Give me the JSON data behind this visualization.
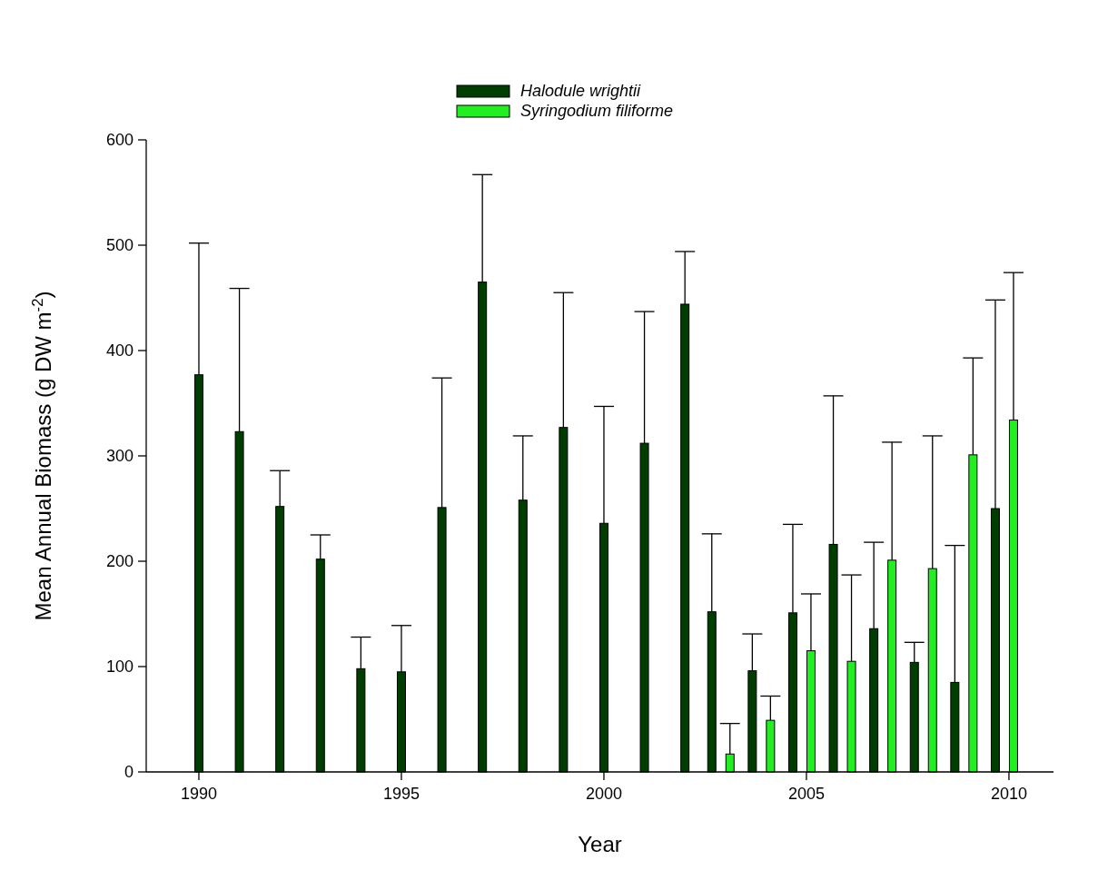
{
  "chart_data": {
    "type": "bar",
    "xlabel": "Year",
    "ylabel": "Mean Annual Biomass (g DW m$^{-2}$)",
    "x": [
      1990,
      1991,
      1992,
      1993,
      1994,
      1995,
      1996,
      1997,
      1998,
      1999,
      2000,
      2001,
      2002,
      2003,
      2004,
      2005,
      2006,
      2007,
      2008,
      2009,
      2010
    ],
    "xlim": [
      1988.7,
      2011.1
    ],
    "xticks": [
      1990,
      1995,
      2000,
      2005,
      2010
    ],
    "ylim": [
      0,
      600
    ],
    "yticks": [
      0,
      100,
      200,
      300,
      400,
      500,
      600
    ],
    "series": [
      {
        "name": "Halodule wrightii",
        "color": "#003d00",
        "values": [
          377,
          323,
          252,
          202,
          98,
          95,
          251,
          465,
          258,
          327,
          236,
          312,
          444,
          152,
          96,
          151,
          216,
          136,
          104,
          85,
          250
        ],
        "errors": [
          [
            377,
            502
          ],
          [
            323,
            459
          ],
          [
            252,
            286
          ],
          [
            202,
            225
          ],
          [
            98,
            128
          ],
          [
            95,
            139
          ],
          [
            251,
            374
          ],
          [
            465,
            567
          ],
          [
            258,
            319
          ],
          [
            327,
            455
          ],
          [
            236,
            347
          ],
          [
            312,
            437
          ],
          [
            444,
            494
          ],
          [
            152,
            226
          ],
          [
            96,
            131
          ],
          [
            151,
            235
          ],
          [
            216,
            357
          ],
          [
            136,
            218
          ],
          [
            104,
            123
          ],
          [
            85,
            215
          ],
          [
            250,
            448
          ]
        ]
      },
      {
        "name": "Syringodium filiforme",
        "color": "#22ee22",
        "values": [
          null,
          null,
          null,
          null,
          null,
          null,
          null,
          null,
          null,
          null,
          null,
          null,
          null,
          17,
          49,
          115,
          105,
          201,
          193,
          301,
          334
        ],
        "errors": [
          null,
          null,
          null,
          null,
          null,
          null,
          null,
          null,
          null,
          null,
          null,
          null,
          null,
          [
            17,
            46
          ],
          [
            49,
            72
          ],
          [
            115,
            169
          ],
          [
            105,
            187
          ],
          [
            201,
            313
          ],
          [
            193,
            319
          ],
          [
            301,
            393
          ],
          [
            334,
            474
          ]
        ]
      }
    ],
    "legend": "top",
    "grid": false
  }
}
